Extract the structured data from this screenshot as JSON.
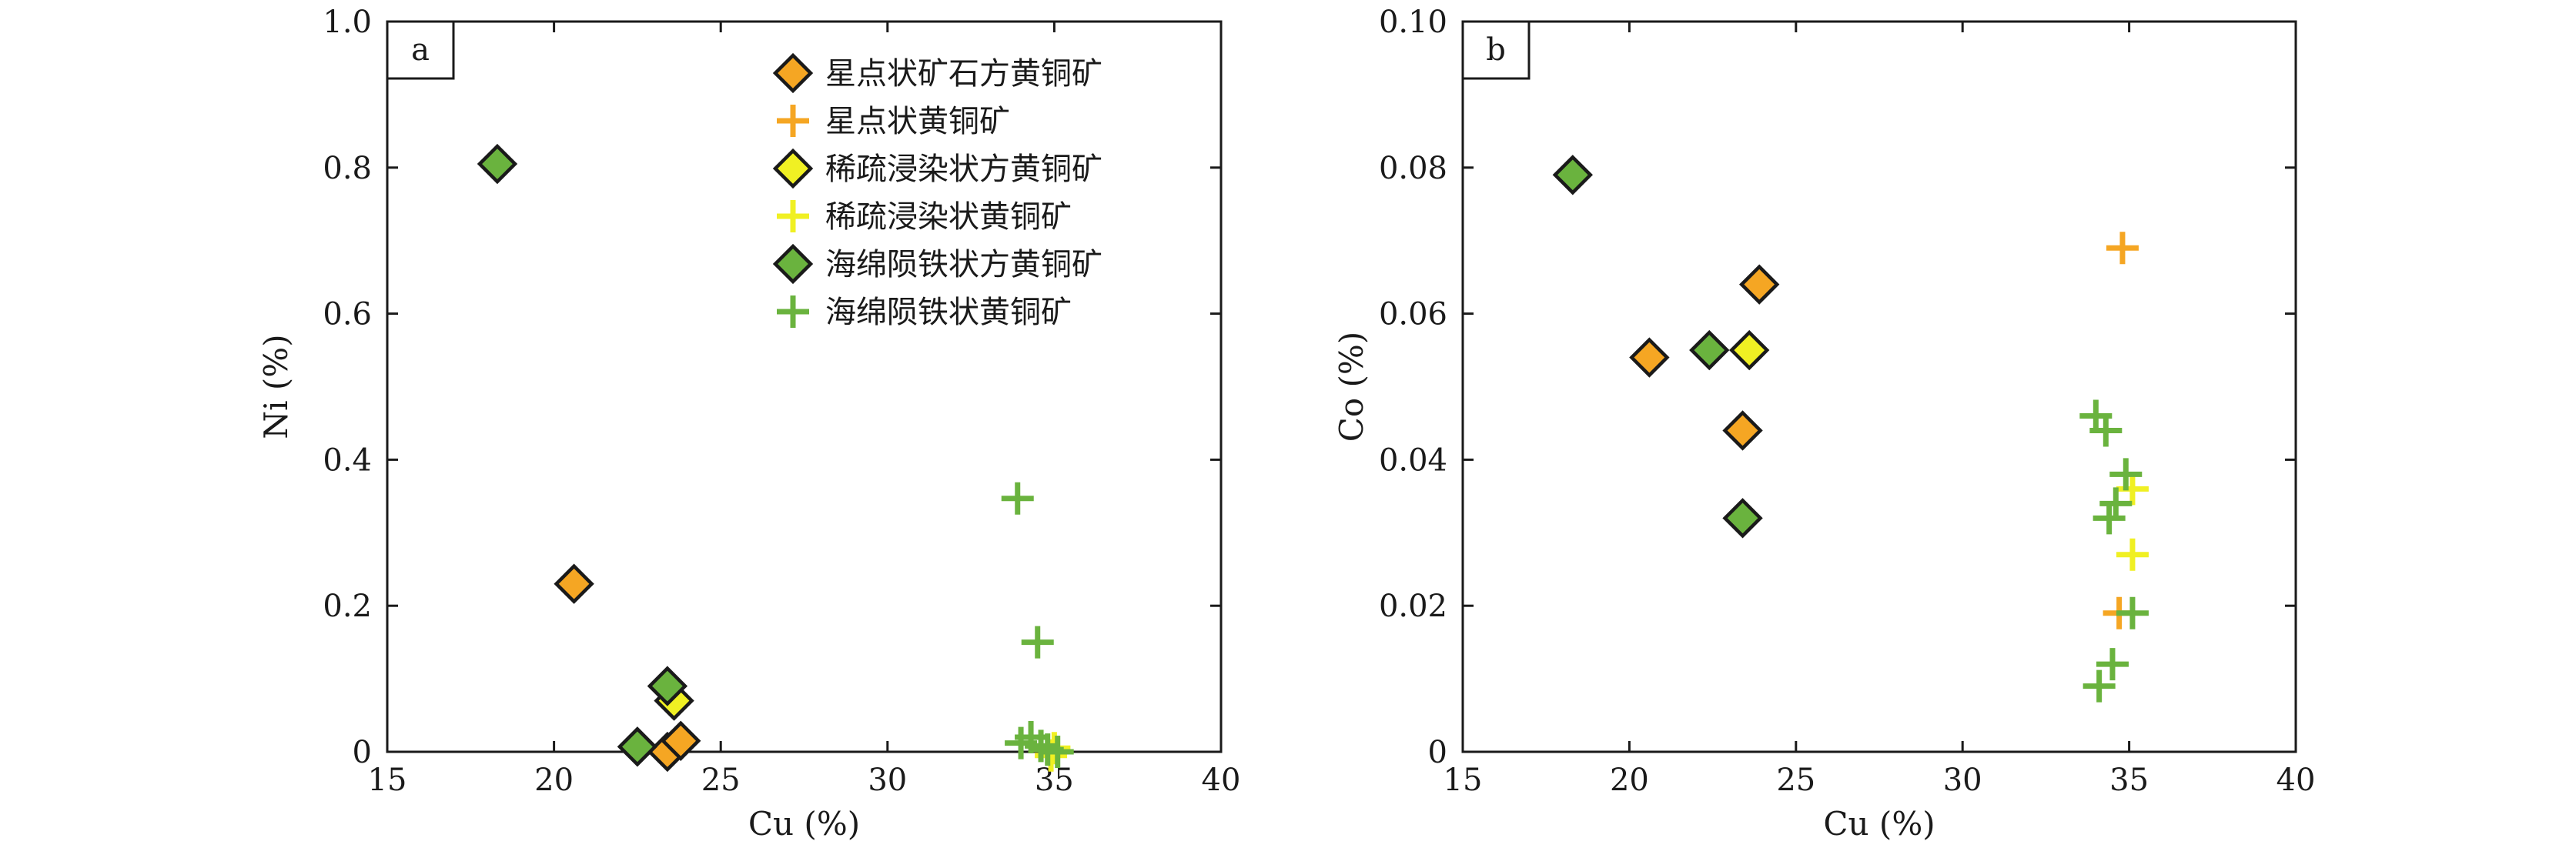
{
  "colors": {
    "orange": "#f5a623",
    "yellow": "#f0f023",
    "green": "#6ab33e",
    "outline": "#1a1a1a"
  },
  "legend": {
    "items": [
      {
        "label": "星点状矿石方黄铜矿",
        "marker": "diamond",
        "color": "#f5a623"
      },
      {
        "label": "星点状黄铜矿",
        "marker": "plus",
        "color": "#f5a623"
      },
      {
        "label": "稀疏浸染状方黄铜矿",
        "marker": "diamond",
        "color": "#f0f023"
      },
      {
        "label": "稀疏浸染状黄铜矿",
        "marker": "plus",
        "color": "#f0f023"
      },
      {
        "label": "海绵陨铁状方黄铜矿",
        "marker": "diamond",
        "color": "#6ab33e"
      },
      {
        "label": "海绵陨铁状黄铜矿",
        "marker": "plus",
        "color": "#6ab33e"
      }
    ]
  },
  "chart_data": [
    {
      "type": "scatter",
      "panel_label": "a",
      "xlabel": "Cu (%)",
      "ylabel": "Ni (%)",
      "xlim": [
        15,
        40
      ],
      "ylim": [
        0,
        1.0
      ],
      "xticks": [
        "15",
        "20",
        "25",
        "30",
        "35",
        "40"
      ],
      "yticks": [
        "0",
        "0.2",
        "0.4",
        "0.6",
        "0.8",
        "1.0"
      ],
      "legend_position": "top-right",
      "series": [
        {
          "name": "星点状矿石方黄铜矿",
          "marker": "diamond",
          "color": "#f5a623",
          "points": [
            [
              20.6,
              0.23
            ],
            [
              23.4,
              0.0
            ],
            [
              23.8,
              0.015
            ]
          ]
        },
        {
          "name": "星点状黄铜矿",
          "marker": "plus",
          "color": "#f5a623",
          "points": []
        },
        {
          "name": "稀疏浸染状方黄铜矿",
          "marker": "diamond",
          "color": "#f0f023",
          "points": [
            [
              23.6,
              0.07
            ]
          ]
        },
        {
          "name": "稀疏浸染状黄铜矿",
          "marker": "plus",
          "color": "#f0f023",
          "points": [
            [
              34.9,
              -0.005
            ],
            [
              35.0,
              0.005
            ]
          ]
        },
        {
          "name": "海绵陨铁状方黄铜矿",
          "marker": "diamond",
          "color": "#6ab33e",
          "points": [
            [
              18.3,
              0.805
            ],
            [
              22.5,
              0.007
            ],
            [
              23.4,
              0.09
            ]
          ]
        },
        {
          "name": "海绵陨铁状黄铜矿",
          "marker": "plus",
          "color": "#6ab33e",
          "points": [
            [
              33.9,
              0.347
            ],
            [
              34.5,
              0.15
            ],
            [
              34.0,
              0.012
            ],
            [
              34.3,
              0.02
            ],
            [
              34.6,
              0.008
            ],
            [
              34.8,
              0.003
            ],
            [
              35.1,
              0.0
            ]
          ]
        }
      ]
    },
    {
      "type": "scatter",
      "panel_label": "b",
      "xlabel": "Cu (%)",
      "ylabel": "Co (%)",
      "xlim": [
        15,
        40
      ],
      "ylim": [
        0,
        0.1
      ],
      "xticks": [
        "15",
        "20",
        "25",
        "30",
        "35",
        "40"
      ],
      "yticks": [
        "0",
        "0.02",
        "0.04",
        "0.06",
        "0.08",
        "0.10"
      ],
      "series": [
        {
          "name": "星点状矿石方黄铜矿",
          "marker": "diamond",
          "color": "#f5a623",
          "points": [
            [
              20.6,
              0.054
            ],
            [
              23.4,
              0.044
            ],
            [
              23.9,
              0.064
            ]
          ]
        },
        {
          "name": "星点状黄铜矿",
          "marker": "plus",
          "color": "#f5a623",
          "points": [
            [
              34.8,
              0.069
            ],
            [
              34.7,
              0.019
            ]
          ]
        },
        {
          "name": "稀疏浸染状方黄铜矿",
          "marker": "diamond",
          "color": "#f0f023",
          "points": [
            [
              23.6,
              0.055
            ]
          ]
        },
        {
          "name": "稀疏浸染状黄铜矿",
          "marker": "plus",
          "color": "#f0f023",
          "points": [
            [
              35.1,
              0.036
            ],
            [
              35.1,
              0.027
            ]
          ]
        },
        {
          "name": "海绵陨铁状方黄铜矿",
          "marker": "diamond",
          "color": "#6ab33e",
          "points": [
            [
              18.3,
              0.079
            ],
            [
              22.4,
              0.055
            ],
            [
              23.4,
              0.032
            ]
          ]
        },
        {
          "name": "海绵陨铁状黄铜矿",
          "marker": "plus",
          "color": "#6ab33e",
          "points": [
            [
              34.0,
              0.046
            ],
            [
              34.3,
              0.044
            ],
            [
              34.9,
              0.038
            ],
            [
              34.6,
              0.034
            ],
            [
              34.4,
              0.032
            ],
            [
              35.1,
              0.019
            ],
            [
              34.5,
              0.012
            ],
            [
              34.1,
              0.009
            ]
          ]
        }
      ]
    }
  ]
}
